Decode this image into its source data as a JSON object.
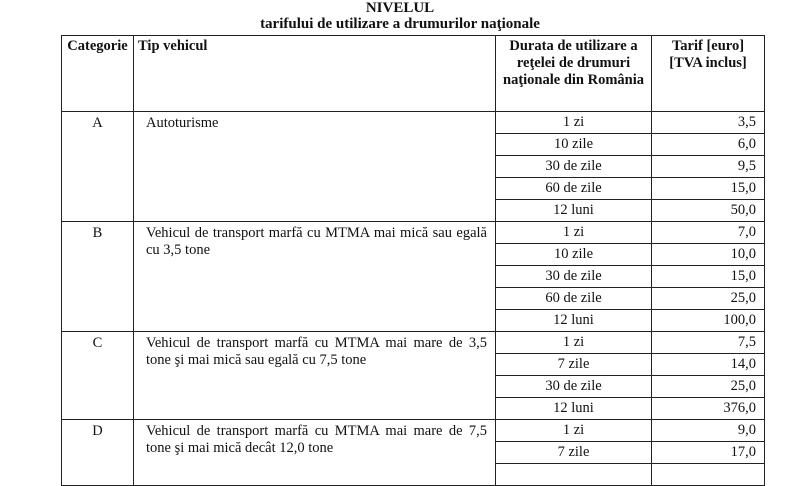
{
  "title_line1": "NIVELUL",
  "title_line2": "tarifului de utilizare a drumurilor naţionale",
  "headers": [
    "Categorie",
    "Tip vehicul",
    "Durata de utilizare a reţelei de drumuri naţionale din România",
    "Tarif [euro] [TVA inclus]"
  ],
  "groups": [
    {
      "cat": "A",
      "tip": "Autoturisme",
      "rows": [
        [
          "1 zi",
          "3,5"
        ],
        [
          "10 zile",
          "6,0"
        ],
        [
          "30 de zile",
          "9,5"
        ],
        [
          "60 de zile",
          "15,0"
        ],
        [
          "12 luni",
          "50,0"
        ]
      ]
    },
    {
      "cat": "B",
      "tip": "Vehicul de transport marfă cu MTMA mai mică sau egală cu 3,5 tone",
      "rows": [
        [
          "1 zi",
          "7,0"
        ],
        [
          "10 zile",
          "10,0"
        ],
        [
          "30 de zile",
          "15,0"
        ],
        [
          "60 de zile",
          "25,0"
        ],
        [
          "12 luni",
          "100,0"
        ]
      ]
    },
    {
      "cat": "C",
      "tip": "Vehicul de transport marfă cu MTMA mai mare de 3,5 tone şi mai mică sau egală cu 7,5 tone",
      "rows": [
        [
          "1 zi",
          "7,5"
        ],
        [
          "7 zile",
          "14,0"
        ],
        [
          "30 de zile",
          "25,0"
        ],
        [
          "12 luni",
          "376,0"
        ]
      ]
    },
    {
      "cat": "D",
      "tip": "Vehicul de transport marfă cu MTMA mai mare de 7,5 tone şi mai mică decât 12,0 tone",
      "rows": [
        [
          "1 zi",
          "9,0"
        ],
        [
          "7 zile",
          "17,0"
        ],
        [
          "",
          ""
        ]
      ]
    }
  ]
}
